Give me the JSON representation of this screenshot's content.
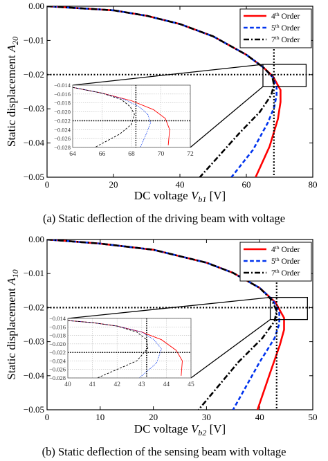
{
  "chart_data": [
    {
      "type": "line",
      "caption": "(a) Static deflection of the driving beam with voltage",
      "ylabel_prefix": "Static displacement",
      "ylabel_var": "A",
      "ylabel_sub": "20",
      "xlabel_prefix": "DC voltage",
      "xlabel_var": "V",
      "xlabel_sub": "b1",
      "xlabel_unit": "[V]",
      "xlim": [
        0,
        80
      ],
      "ylim": [
        -0.05,
        0.0
      ],
      "xticks": [
        "0",
        "20",
        "40",
        "60",
        "80"
      ],
      "yticks": [
        "0.00",
        "−0.01",
        "−0.02",
        "−0.03",
        "−0.04",
        "−0.05"
      ],
      "legend_position": "top-right",
      "series": [
        {
          "name": "4th Order",
          "order": "4",
          "color": "#ff0000",
          "dash": "solid",
          "x": [
            0,
            20,
            30,
            40,
            50,
            60,
            65,
            68,
            70.3,
            70.3,
            69.5,
            67,
            62.8
          ],
          "y": [
            0,
            -0.0012,
            -0.0028,
            -0.0052,
            -0.0088,
            -0.0142,
            -0.0178,
            -0.0205,
            -0.0245,
            -0.028,
            -0.033,
            -0.041,
            -0.05
          ]
        },
        {
          "name": "5th Order",
          "order": "5",
          "color": "#0033ee",
          "dash": "dashed",
          "x": [
            0,
            20,
            30,
            40,
            50,
            60,
            65,
            68,
            69.1,
            69.1,
            68.4,
            66.5,
            62,
            55.5
          ],
          "y": [
            0,
            -0.0012,
            -0.0028,
            -0.0052,
            -0.0088,
            -0.0142,
            -0.0178,
            -0.0208,
            -0.0235,
            -0.026,
            -0.0295,
            -0.034,
            -0.042,
            -0.05
          ]
        },
        {
          "name": "7th Order",
          "order": "7",
          "color": "#000000",
          "dash": "dashdot",
          "x": [
            0,
            20,
            30,
            40,
            50,
            60,
            65,
            67.8,
            68.3,
            67.5,
            64,
            58,
            46
          ],
          "y": [
            0,
            -0.0012,
            -0.0028,
            -0.0052,
            -0.0088,
            -0.0142,
            -0.0178,
            -0.0205,
            -0.023,
            -0.026,
            -0.031,
            -0.037,
            -0.05
          ]
        }
      ],
      "reference_lines": {
        "y": -0.02,
        "x": 68.3
      },
      "zoom_box": {
        "x": [
          65,
          78
        ],
        "y": [
          -0.0235,
          -0.017
        ]
      },
      "inset": {
        "xlim": [
          64,
          72
        ],
        "ylim": [
          -0.028,
          -0.014
        ],
        "xticks": [
          "64",
          "66",
          "68",
          "70",
          "72"
        ],
        "yticks": [
          "−0.014",
          "−0.016",
          "−0.018",
          "−0.020",
          "−0.022",
          "−0.024",
          "−0.026",
          "−0.028"
        ],
        "vline": 68.3,
        "hline": -0.022,
        "curves": [
          {
            "color": "#ff0000",
            "dash": "solid",
            "x": [
              64,
              66,
              68,
              69.5,
              70.3,
              70.6,
              70.5
            ],
            "y": [
              -0.0145,
              -0.0158,
              -0.0175,
              -0.0195,
              -0.0215,
              -0.024,
              -0.0275
            ]
          },
          {
            "color": "#0033ee",
            "dash": "dotted",
            "x": [
              64,
              66,
              67.5,
              68.5,
              69.1,
              69.3,
              69.0,
              68.6
            ],
            "y": [
              -0.0145,
              -0.0158,
              -0.0172,
              -0.0188,
              -0.0205,
              -0.0225,
              -0.025,
              -0.028
            ]
          },
          {
            "color": "#000000",
            "dash": "dashed",
            "x": [
              64,
              66,
              67.3,
              67.9,
              68.2,
              68.0,
              67.2,
              65.5
            ],
            "y": [
              -0.0145,
              -0.0158,
              -0.0172,
              -0.0188,
              -0.0205,
              -0.0228,
              -0.025,
              -0.028
            ]
          }
        ]
      }
    },
    {
      "type": "line",
      "caption": "(b) Static deflection of the sensing beam with voltage",
      "ylabel_prefix": "Static displacement",
      "ylabel_var": "A",
      "ylabel_sub": "10",
      "xlabel_prefix": "DC voltage",
      "xlabel_var": "V",
      "xlabel_sub": "b2",
      "xlabel_unit": "[V]",
      "xlim": [
        0,
        50
      ],
      "ylim": [
        -0.05,
        0.0
      ],
      "xticks": [
        "0",
        "10",
        "20",
        "30",
        "40",
        "50"
      ],
      "yticks": [
        "0.00",
        "−0.01",
        "−0.02",
        "−0.03",
        "−0.04",
        "−0.05"
      ],
      "legend_position": "top-right",
      "series": [
        {
          "name": "4th Order",
          "order": "4",
          "color": "#ff0000",
          "dash": "solid",
          "x": [
            0,
            10,
            20,
            30,
            35,
            40,
            43,
            44.6,
            44.6,
            43.8,
            42,
            39.6
          ],
          "y": [
            0,
            -0.0012,
            -0.003,
            -0.0068,
            -0.0098,
            -0.0142,
            -0.0185,
            -0.023,
            -0.0265,
            -0.031,
            -0.039,
            -0.05
          ]
        },
        {
          "name": "5th Order",
          "order": "5",
          "color": "#0033ee",
          "dash": "dashed",
          "x": [
            0,
            10,
            20,
            30,
            35,
            40,
            42.5,
            43.7,
            43.7,
            42.8,
            40,
            35
          ],
          "y": [
            0,
            -0.0012,
            -0.003,
            -0.0068,
            -0.0098,
            -0.0142,
            -0.0178,
            -0.0215,
            -0.0248,
            -0.029,
            -0.036,
            -0.05
          ]
        },
        {
          "name": "7th Order",
          "order": "7",
          "color": "#000000",
          "dash": "dashdot",
          "x": [
            0,
            10,
            20,
            30,
            35,
            40,
            42.3,
            43.2,
            42.8,
            40.5,
            36,
            28.5
          ],
          "y": [
            0,
            -0.0012,
            -0.003,
            -0.0068,
            -0.0098,
            -0.0142,
            -0.0178,
            -0.021,
            -0.024,
            -0.029,
            -0.036,
            -0.05
          ]
        }
      ],
      "reference_lines": {
        "y": -0.02,
        "x": 43.2
      },
      "zoom_box": {
        "x": [
          42,
          49
        ],
        "y": [
          -0.0235,
          -0.017
        ]
      },
      "inset": {
        "xlim": [
          40,
          45
        ],
        "ylim": [
          -0.028,
          -0.014
        ],
        "xticks": [
          "40",
          "41",
          "42",
          "43",
          "44",
          "45"
        ],
        "yticks": [
          "−0.014",
          "−0.016",
          "−0.018",
          "−0.020",
          "−0.022",
          "−0.024",
          "−0.026",
          "−0.028"
        ],
        "vline": 43.2,
        "hline": -0.022,
        "curves": [
          {
            "color": "#ff0000",
            "dash": "solid",
            "x": [
              40,
              41,
              42,
              43,
              43.8,
              44.4,
              44.65,
              44.6
            ],
            "y": [
              -0.0145,
              -0.015,
              -0.0158,
              -0.0172,
              -0.019,
              -0.0215,
              -0.024,
              -0.0275
            ]
          },
          {
            "color": "#0033ee",
            "dash": "dotted",
            "x": [
              40,
              41,
              42,
              43,
              43.5,
              43.8,
              43.6,
              42.9
            ],
            "y": [
              -0.0145,
              -0.015,
              -0.0158,
              -0.0172,
              -0.019,
              -0.0212,
              -0.0245,
              -0.028
            ]
          },
          {
            "color": "#000000",
            "dash": "dashed",
            "x": [
              40,
              41,
              42,
              42.8,
              43.2,
              43.25,
              42.8,
              41.2
            ],
            "y": [
              -0.0145,
              -0.015,
              -0.0158,
              -0.0172,
              -0.019,
              -0.021,
              -0.024,
              -0.028
            ]
          }
        ]
      }
    }
  ]
}
